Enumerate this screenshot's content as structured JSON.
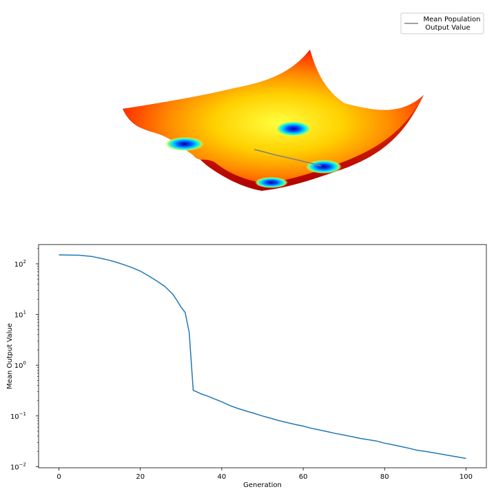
{
  "chart_data": [
    {
      "type": "surface3d",
      "description_colormap": "jet",
      "legend": {
        "entries": [
          {
            "line1": "Mean Population",
            "line2": "Output Value",
            "color": "#808080"
          }
        ],
        "placement": "top-right"
      }
    },
    {
      "type": "line",
      "xlabel": "Generation",
      "ylabel": "Mean Output Value",
      "yscale": "log",
      "xlim": [
        -5,
        105
      ],
      "ylim": [
        0.0095,
        240
      ],
      "grid": false,
      "xticks": [
        0,
        20,
        40,
        60,
        80,
        100
      ],
      "xtick_labels": [
        "0",
        "20",
        "40",
        "60",
        "80",
        "100"
      ],
      "yticks": [
        0.01,
        0.1,
        1,
        10,
        100
      ],
      "series": [
        {
          "color": "#1f77b4",
          "x": [
            0,
            5,
            8,
            10,
            12,
            14,
            16,
            18,
            20,
            22,
            24,
            26,
            28,
            29,
            30,
            31,
            32,
            33,
            34,
            35,
            36,
            38,
            40,
            42,
            44,
            46,
            48,
            50,
            52,
            54,
            56,
            58,
            60,
            62,
            64,
            66,
            68,
            70,
            72,
            74,
            76,
            78,
            80,
            82,
            84,
            86,
            88,
            90,
            92,
            94,
            96,
            98,
            100
          ],
          "y": [
            150,
            148,
            140,
            130,
            120,
            108,
            96,
            84,
            72,
            58,
            46,
            36,
            25,
            19,
            14,
            11,
            4.5,
            0.32,
            0.295,
            0.27,
            0.255,
            0.22,
            0.19,
            0.16,
            0.14,
            0.125,
            0.112,
            0.1,
            0.09,
            0.081,
            0.074,
            0.068,
            0.063,
            0.057,
            0.053,
            0.049,
            0.045,
            0.042,
            0.039,
            0.036,
            0.034,
            0.032,
            0.029,
            0.027,
            0.025,
            0.023,
            0.021,
            0.02,
            0.0188,
            0.0176,
            0.0165,
            0.0155,
            0.0145
          ]
        }
      ]
    }
  ]
}
